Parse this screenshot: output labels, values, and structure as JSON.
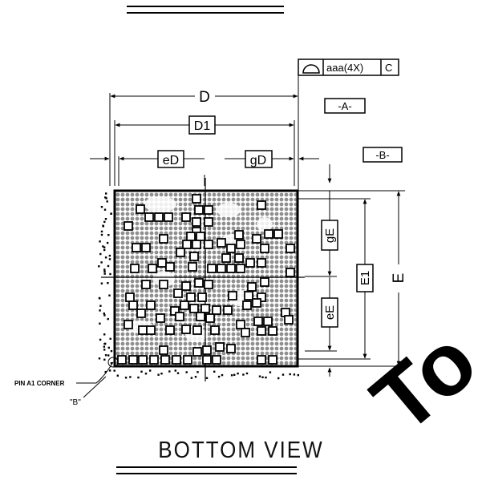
{
  "labels": {
    "D": "D",
    "D1": "D1",
    "eD": "eD",
    "gD": "gD",
    "A": "-A-",
    "B": "-B-",
    "E": "E",
    "E1": "E1",
    "gE": "gE",
    "eE": "eE",
    "tolerance": "aaa(4X)",
    "datum_ref": "C",
    "pin_a1": "PIN A1 CORNER",
    "b_note": "\"B\""
  },
  "caption": "BOTTOM VIEW",
  "watermark": "To",
  "colors": {
    "ink": "#000000",
    "ball": "#9a9a9a",
    "watermark": "#e8e8e8"
  }
}
